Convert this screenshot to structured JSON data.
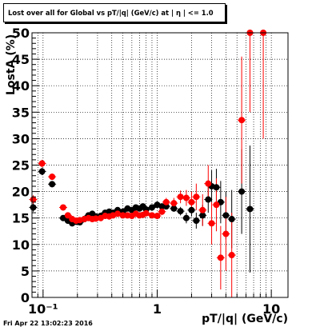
{
  "title": "Lost over all for Global vs pT/|q| (GeV/c) at | η | <= 1.0",
  "timestamp": "Fri Apr 22 13:02:23 2016",
  "chart_data": {
    "type": "scatter",
    "title": "Lost over all for Global vs pT/|q| (GeV/c) at | η | <= 1.0",
    "xlabel": "pT/|q| (GeV/c)",
    "ylabel": "LostA (%)",
    "xscale": "log",
    "xlim": [
      0.08,
      14
    ],
    "ylim": [
      0,
      50
    ],
    "grid": true,
    "x_ticks": [
      {
        "value": 0.1,
        "label": "10⁻¹"
      },
      {
        "value": 1,
        "label": "1"
      },
      {
        "value": 10,
        "label": "10"
      }
    ],
    "y_ticks": [
      0,
      5,
      10,
      15,
      20,
      25,
      30,
      35,
      40,
      45,
      50
    ],
    "colors": {
      "series_black": "#000000",
      "series_red": "#ff0000"
    },
    "series": [
      {
        "color": "#000000",
        "x": [
          0.082,
          0.098,
          0.12,
          0.15,
          0.165,
          0.18,
          0.195,
          0.21,
          0.23,
          0.25,
          0.27,
          0.29,
          0.32,
          0.35,
          0.38,
          0.41,
          0.45,
          0.5,
          0.55,
          0.6,
          0.65,
          0.7,
          0.75,
          0.8,
          0.9,
          1.0,
          1.1,
          1.2,
          1.4,
          1.6,
          1.8,
          2.0,
          2.2,
          2.5,
          2.8,
          3.0,
          3.3,
          3.6,
          4.0,
          4.5,
          5.5,
          6.5
        ],
        "y": [
          17.0,
          23.8,
          21.4,
          15.0,
          14.5,
          14.0,
          14.3,
          14.2,
          14.8,
          15.5,
          15.8,
          15.3,
          15.4,
          16.0,
          16.2,
          16.0,
          16.5,
          16.2,
          16.8,
          16.5,
          17.0,
          16.8,
          17.2,
          16.6,
          17.0,
          17.5,
          17.2,
          17.2,
          16.8,
          16.3,
          15.0,
          16.5,
          14.5,
          15.5,
          18.5,
          21.0,
          20.8,
          18.0,
          15.5,
          14.8,
          20.0,
          16.7
        ],
        "yerr": [
          0.8,
          0.7,
          0.6,
          0.5,
          0.5,
          0.5,
          0.5,
          0.4,
          0.4,
          0.4,
          0.4,
          0.4,
          0.4,
          0.4,
          0.4,
          0.4,
          0.4,
          0.4,
          0.4,
          0.4,
          0.4,
          0.4,
          0.4,
          0.4,
          0.4,
          0.5,
          0.5,
          0.5,
          0.6,
          0.8,
          1.0,
          1.2,
          1.5,
          2.0,
          2.5,
          3.0,
          3.5,
          4.0,
          4.5,
          5.5,
          8.0,
          12.0
        ]
      },
      {
        "color": "#ff0000",
        "x": [
          0.082,
          0.098,
          0.12,
          0.15,
          0.165,
          0.18,
          0.195,
          0.21,
          0.23,
          0.25,
          0.27,
          0.29,
          0.32,
          0.35,
          0.38,
          0.41,
          0.45,
          0.5,
          0.55,
          0.6,
          0.65,
          0.7,
          0.75,
          0.8,
          0.9,
          1.0,
          1.1,
          1.2,
          1.4,
          1.6,
          1.8,
          2.0,
          2.2,
          2.5,
          2.8,
          3.0,
          3.3,
          3.6,
          4.0,
          4.5,
          5.5,
          6.5,
          8.5
        ],
        "y": [
          18.5,
          25.3,
          22.8,
          17.0,
          15.5,
          14.8,
          14.5,
          14.6,
          14.8,
          15.0,
          14.8,
          14.9,
          15.0,
          15.4,
          15.3,
          15.5,
          15.8,
          15.5,
          15.5,
          15.4,
          15.8,
          15.5,
          15.6,
          15.9,
          15.5,
          15.4,
          16.2,
          18.0,
          17.8,
          19.0,
          18.8,
          18.0,
          19.0,
          16.5,
          21.5,
          14.0,
          17.5,
          7.5,
          12.0,
          8.0,
          33.5,
          50.0,
          50.0
        ],
        "yerr": [
          0.8,
          0.7,
          0.6,
          0.5,
          0.5,
          0.5,
          0.5,
          0.4,
          0.4,
          0.4,
          0.4,
          0.4,
          0.4,
          0.4,
          0.4,
          0.4,
          0.4,
          0.4,
          0.4,
          0.4,
          0.4,
          0.4,
          0.4,
          0.4,
          0.4,
          0.5,
          0.6,
          0.8,
          1.0,
          1.2,
          1.5,
          2.0,
          2.5,
          3.0,
          3.5,
          4.0,
          5.0,
          6.0,
          7.0,
          8.0,
          12.0,
          15.0,
          20.0
        ]
      }
    ]
  }
}
